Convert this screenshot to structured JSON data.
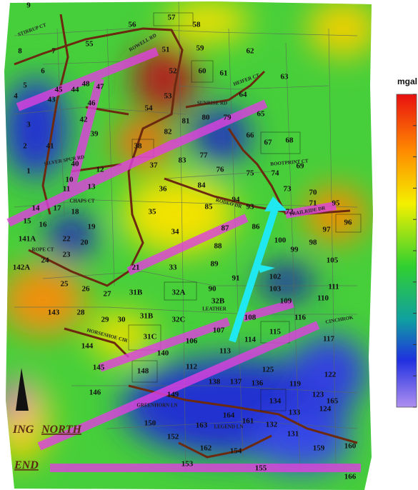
{
  "legend": {
    "unit": "mgal"
  },
  "parcels": [
    "9",
    "56",
    "57",
    "58",
    "8",
    "7",
    "55",
    "51",
    "59",
    "62",
    "6",
    "52",
    "60",
    "61",
    "63",
    "5",
    "45",
    "44",
    "48",
    "47",
    "53",
    "64",
    "4",
    "43",
    "46",
    "54",
    "81",
    "80",
    "79",
    "65",
    "3",
    "42",
    "39",
    "82",
    "66",
    "67",
    "68",
    "2",
    "41",
    "38",
    "77",
    "40",
    "12",
    "37",
    "83",
    "76",
    "75",
    "74",
    "69",
    "1",
    "10",
    "11",
    "36",
    "84",
    "73",
    "70",
    "95",
    "13",
    "94",
    "93",
    "71",
    "17",
    "18",
    "85",
    "14",
    "15",
    "16",
    "19",
    "35",
    "87",
    "86",
    "72",
    "97",
    "96",
    "141A",
    "22",
    "20",
    "34",
    "88",
    "100",
    "99",
    "98",
    "105",
    "23",
    "24",
    "142A",
    "21",
    "33",
    "89",
    "91",
    "102",
    "25",
    "26",
    "27",
    "31B",
    "32A",
    "90",
    "103",
    "111",
    "32B",
    "109",
    "110",
    "143",
    "28",
    "29",
    "30",
    "31B",
    "32C",
    "108",
    "116",
    "144",
    "31C",
    "106",
    "107",
    "114",
    "115",
    "117",
    "145",
    "140",
    "113",
    "148",
    "112",
    "125",
    "122",
    "138",
    "137",
    "136",
    "119",
    "146",
    "149",
    "134",
    "123",
    "133",
    "165",
    "150",
    "152",
    "163",
    "164",
    "161",
    "132",
    "124",
    "131",
    "162",
    "154",
    "159",
    "160",
    "153",
    "155",
    "166"
  ],
  "roads": [
    "STIRRUP CT",
    "ROWELL RD",
    "SUNRISE RD",
    "HEIFER CT",
    "SILVER SPUR RD",
    "CHAPS CT",
    "ROPE CT",
    "HORSESHOE CIR",
    "GREENHORN LN",
    "LEGEND LN",
    "BOOTPRINT CT",
    "RODEO DR",
    "TRAILRIDE DR",
    "LEATHER",
    "CINCHROK"
  ],
  "map_labels": [
    "ING",
    "NORTH",
    "END"
  ]
}
